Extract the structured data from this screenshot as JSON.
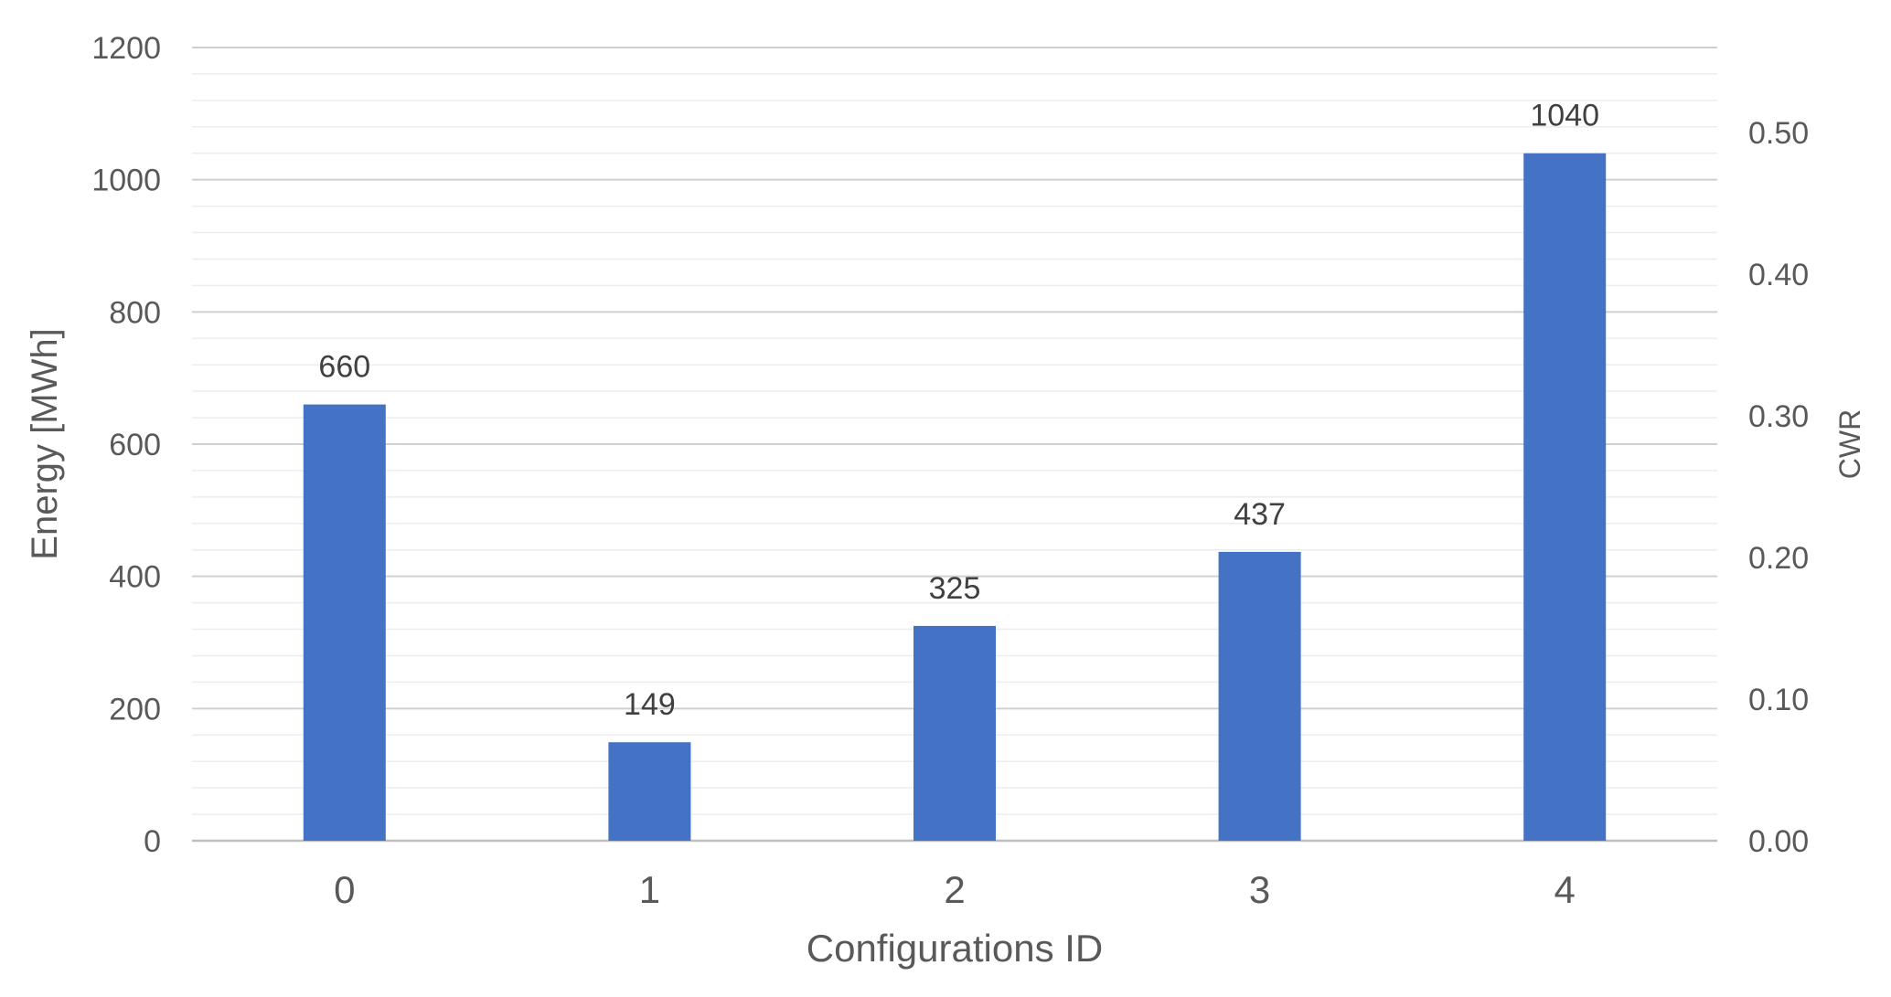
{
  "chart_data": {
    "type": "bar",
    "categories": [
      "0",
      "1",
      "2",
      "3",
      "4"
    ],
    "values": [
      660,
      149,
      325,
      437,
      1040
    ],
    "data_labels": [
      "660",
      "149",
      "325",
      "437",
      "1040"
    ],
    "xlabel": "Configurations ID",
    "ylabel": "Energy [MWh]",
    "ylim": [
      0,
      1200
    ],
    "yticks": [
      "0",
      "200",
      "400",
      "600",
      "800",
      "1000",
      "1200"
    ],
    "y2label": "CWR",
    "y2lim": [
      0,
      0.56
    ],
    "y2ticks": [
      "0.00",
      "0.10",
      "0.20",
      "0.30",
      "0.40",
      "0.50"
    ],
    "grid": true,
    "legend": "none",
    "bar_color": "#4472C4",
    "gridline_color": "#D9D9D9",
    "text_color": "#595959"
  }
}
